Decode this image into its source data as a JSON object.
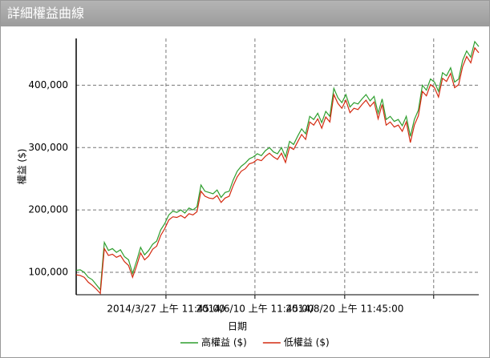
{
  "window": {
    "title": "詳細權益曲線"
  },
  "chart_data": {
    "type": "line",
    "x_label": "日期",
    "y_label": "權益 ($)",
    "x": [
      0,
      1,
      2,
      3,
      4,
      5,
      6,
      7,
      8,
      9,
      10,
      11,
      12,
      13,
      14,
      15,
      16,
      17,
      18,
      19,
      20,
      21,
      22,
      23,
      24,
      25,
      26,
      27,
      28,
      29,
      30,
      31,
      32,
      33,
      34,
      35,
      36,
      37,
      38,
      39,
      40,
      41,
      42,
      43,
      44,
      45,
      46,
      47,
      48,
      49,
      50,
      51,
      52,
      53,
      54,
      55,
      56,
      57,
      58,
      59,
      60,
      61,
      62,
      63,
      64,
      65,
      66,
      67,
      68,
      69,
      70,
      71,
      72,
      73,
      74,
      75,
      76,
      77,
      78,
      79,
      80,
      81,
      82,
      83,
      84,
      85,
      86,
      87,
      88,
      89,
      90,
      91,
      92,
      93,
      94,
      95,
      96,
      97,
      98,
      99,
      100
    ],
    "series": [
      {
        "name": "高權益 ($)",
        "color": "#2e9e2e",
        "values": [
          103000,
          104000,
          100000,
          92000,
          88000,
          80000,
          72000,
          148000,
          135000,
          138000,
          132000,
          136000,
          125000,
          120000,
          98000,
          118000,
          140000,
          128000,
          135000,
          145000,
          150000,
          168000,
          178000,
          192000,
          198000,
          196000,
          200000,
          195000,
          203000,
          200000,
          205000,
          240000,
          230000,
          228000,
          226000,
          232000,
          220000,
          228000,
          230000,
          248000,
          262000,
          270000,
          275000,
          282000,
          285000,
          290000,
          287000,
          295000,
          300000,
          293000,
          290000,
          300000,
          285000,
          310000,
          305000,
          318000,
          330000,
          322000,
          350000,
          345000,
          355000,
          340000,
          358000,
          350000,
          395000,
          380000,
          372000,
          385000,
          365000,
          372000,
          370000,
          378000,
          385000,
          375000,
          382000,
          355000,
          378000,
          345000,
          350000,
          342000,
          345000,
          335000,
          350000,
          318000,
          345000,
          360000,
          400000,
          392000,
          410000,
          405000,
          390000,
          420000,
          415000,
          428000,
          405000,
          410000,
          440000,
          455000,
          445000,
          470000,
          462000
        ]
      },
      {
        "name": "低權益 ($)",
        "color": "#d42a10",
        "values": [
          96000,
          95000,
          92000,
          84000,
          79000,
          73000,
          66000,
          138000,
          127000,
          129000,
          124000,
          127000,
          117000,
          111000,
          92000,
          110000,
          131000,
          120000,
          126000,
          137000,
          142000,
          159000,
          170000,
          184000,
          189000,
          188000,
          191000,
          187000,
          194000,
          192000,
          197000,
          230000,
          222000,
          219000,
          218000,
          223000,
          212000,
          219000,
          222000,
          239000,
          253000,
          262000,
          266000,
          274000,
          276000,
          281000,
          279000,
          286000,
          291000,
          285000,
          281000,
          291000,
          276000,
          301000,
          297000,
          309000,
          321000,
          313000,
          341000,
          336000,
          346000,
          331000,
          349000,
          341000,
          385000,
          371000,
          363000,
          376000,
          356000,
          363000,
          361000,
          369000,
          376000,
          366000,
          373000,
          346000,
          369000,
          336000,
          341000,
          333000,
          336000,
          326000,
          341000,
          308000,
          336000,
          351000,
          390000,
          383000,
          401000,
          396000,
          381000,
          411000,
          406000,
          419000,
          396000,
          401000,
          430000,
          446000,
          436000,
          460000,
          452000
        ]
      }
    ],
    "xlim": [
      0,
      100
    ],
    "ylim": [
      64000,
      475000
    ],
    "xticks": [
      {
        "value": 22.3,
        "label": "2014/3/27 上午 11:45:00"
      },
      {
        "value": 44.4,
        "label": "2014/6/10 上午 11:45:00"
      },
      {
        "value": 66.7,
        "label": "2014/8/20 上午 11:45:00"
      },
      {
        "value": 88.8,
        "label": null
      }
    ],
    "yticks": [
      {
        "value": 100000,
        "label": "100,000"
      },
      {
        "value": 200000,
        "label": "200,000"
      },
      {
        "value": 300000,
        "label": "300,000"
      },
      {
        "value": 400000,
        "label": "400,000"
      }
    ],
    "grid": true
  }
}
